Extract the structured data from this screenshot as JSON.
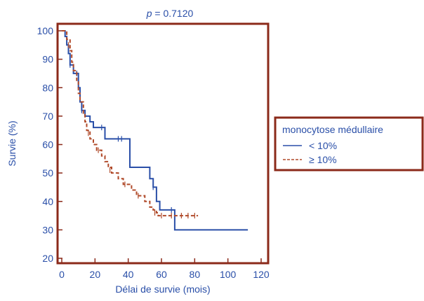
{
  "chart_data": {
    "type": "line",
    "title_prefix": "p",
    "title_value": " = 0.7120",
    "xlabel": "Délai de survie (mois)",
    "ylabel": "Survie (%)",
    "xlim": [
      0,
      120
    ],
    "ylim": [
      20,
      100
    ],
    "x_ticks": [
      0,
      20,
      40,
      60,
      80,
      100,
      120
    ],
    "y_ticks": [
      20,
      30,
      40,
      50,
      60,
      70,
      80,
      90,
      100
    ],
    "grid": false,
    "legend_position": "right",
    "legend_title": "monocytose médullaire",
    "colors": {
      "axis_frame": "#8b2a1a",
      "text": "#2a4fa8",
      "series_lt10": "#2a4fa8",
      "series_ge10": "#b04a2a"
    },
    "series": [
      {
        "name": "< 10%",
        "style": "solid",
        "steps": [
          [
            0,
            100
          ],
          [
            2,
            98
          ],
          [
            3,
            95
          ],
          [
            4,
            92
          ],
          [
            5,
            88
          ],
          [
            7,
            85
          ],
          [
            10,
            80
          ],
          [
            11,
            75
          ],
          [
            12,
            72
          ],
          [
            14,
            70
          ],
          [
            17,
            68
          ],
          [
            19,
            66
          ],
          [
            25,
            66
          ],
          [
            26,
            62
          ],
          [
            40,
            62
          ],
          [
            41,
            52
          ],
          [
            52,
            52
          ],
          [
            53,
            48
          ],
          [
            55,
            45
          ],
          [
            57,
            40
          ],
          [
            59,
            37
          ],
          [
            64,
            37
          ],
          [
            68,
            30
          ],
          [
            112,
            30
          ]
        ],
        "censor": [
          [
            5,
            88
          ],
          [
            9,
            85
          ],
          [
            12,
            72
          ],
          [
            24,
            66
          ],
          [
            34,
            62
          ],
          [
            36,
            62
          ],
          [
            55,
            45
          ],
          [
            66,
            37
          ]
        ]
      },
      {
        "name": "≥ 10%",
        "style": "dashed",
        "steps": [
          [
            0,
            100
          ],
          [
            3,
            97
          ],
          [
            5,
            93
          ],
          [
            6,
            89
          ],
          [
            7,
            86
          ],
          [
            9,
            82
          ],
          [
            10,
            78
          ],
          [
            11,
            75
          ],
          [
            13,
            71
          ],
          [
            14,
            68
          ],
          [
            15,
            65
          ],
          [
            17,
            62
          ],
          [
            19,
            60
          ],
          [
            21,
            58
          ],
          [
            24,
            56
          ],
          [
            26,
            54
          ],
          [
            28,
            52
          ],
          [
            30,
            50
          ],
          [
            34,
            48
          ],
          [
            37,
            46
          ],
          [
            42,
            44
          ],
          [
            45,
            42
          ],
          [
            50,
            40
          ],
          [
            53,
            38
          ],
          [
            55,
            37
          ],
          [
            57,
            36
          ],
          [
            58,
            35
          ],
          [
            82,
            35
          ]
        ],
        "censor": [
          [
            4,
            95
          ],
          [
            16,
            64
          ],
          [
            22,
            58
          ],
          [
            29,
            51
          ],
          [
            38,
            46
          ],
          [
            46,
            42
          ],
          [
            56,
            36
          ],
          [
            60,
            35
          ],
          [
            66,
            35
          ],
          [
            72,
            35
          ],
          [
            76,
            35
          ],
          [
            80,
            35
          ]
        ]
      }
    ]
  }
}
